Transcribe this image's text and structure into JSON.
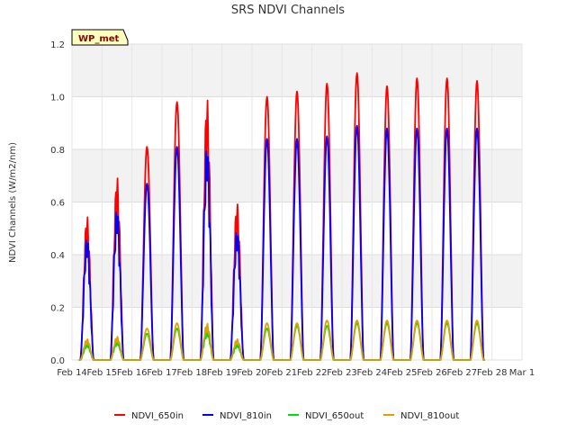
{
  "chart_data": {
    "type": "line",
    "title": "SRS NDVI Channels",
    "tag": "WP_met",
    "xlabel": "",
    "ylabel": "NDVI Channels (W/m2/nm)",
    "ylim": [
      0,
      1.2
    ],
    "yticks": [
      "0.0",
      "0.2",
      "0.4",
      "0.6",
      "0.8",
      "1.0",
      "1.2"
    ],
    "xlim": [
      14,
      29
    ],
    "xticks": [
      {
        "value": 14,
        "label": "Feb 14"
      },
      {
        "value": 15,
        "label": "Feb 15"
      },
      {
        "value": 16,
        "label": "Feb 16"
      },
      {
        "value": 17,
        "label": "Feb 17"
      },
      {
        "value": 18,
        "label": "Feb 18"
      },
      {
        "value": 19,
        "label": "Feb 19"
      },
      {
        "value": 20,
        "label": "Feb 20"
      },
      {
        "value": 21,
        "label": "Feb 21"
      },
      {
        "value": 22,
        "label": "Feb 22"
      },
      {
        "value": 23,
        "label": "Feb 23"
      },
      {
        "value": 24,
        "label": "Feb 24"
      },
      {
        "value": 25,
        "label": "Feb 25"
      },
      {
        "value": 26,
        "label": "Feb 26"
      },
      {
        "value": 27,
        "label": "Feb 27"
      },
      {
        "value": 28,
        "label": "Feb 28"
      },
      {
        "value": 29,
        "label": "Mar 1"
      }
    ],
    "grid": true,
    "legend_position": "bottom",
    "day_start": 14,
    "series": [
      {
        "name": "NDVI_650in",
        "color": "#ff0000",
        "daily_peaks": [
          0.55,
          0.7,
          0.81,
          0.98,
          1.0,
          0.6,
          1.0,
          1.02,
          1.05,
          1.09,
          1.04,
          1.07,
          1.07,
          1.06
        ]
      },
      {
        "name": "NDVI_810in",
        "color": "#0000ff",
        "daily_peaks": [
          0.47,
          0.58,
          0.67,
          0.81,
          0.82,
          0.5,
          0.84,
          0.84,
          0.85,
          0.89,
          0.88,
          0.88,
          0.88,
          0.88
        ]
      },
      {
        "name": "NDVI_650out",
        "color": "#00dd00",
        "daily_peaks": [
          0.06,
          0.07,
          0.1,
          0.12,
          0.11,
          0.06,
          0.12,
          0.13,
          0.13,
          0.14,
          0.14,
          0.14,
          0.14,
          0.14
        ]
      },
      {
        "name": "NDVI_810out",
        "color": "#e0a000",
        "daily_peaks": [
          0.08,
          0.09,
          0.12,
          0.14,
          0.14,
          0.08,
          0.14,
          0.14,
          0.15,
          0.15,
          0.15,
          0.15,
          0.15,
          0.15
        ]
      }
    ]
  }
}
